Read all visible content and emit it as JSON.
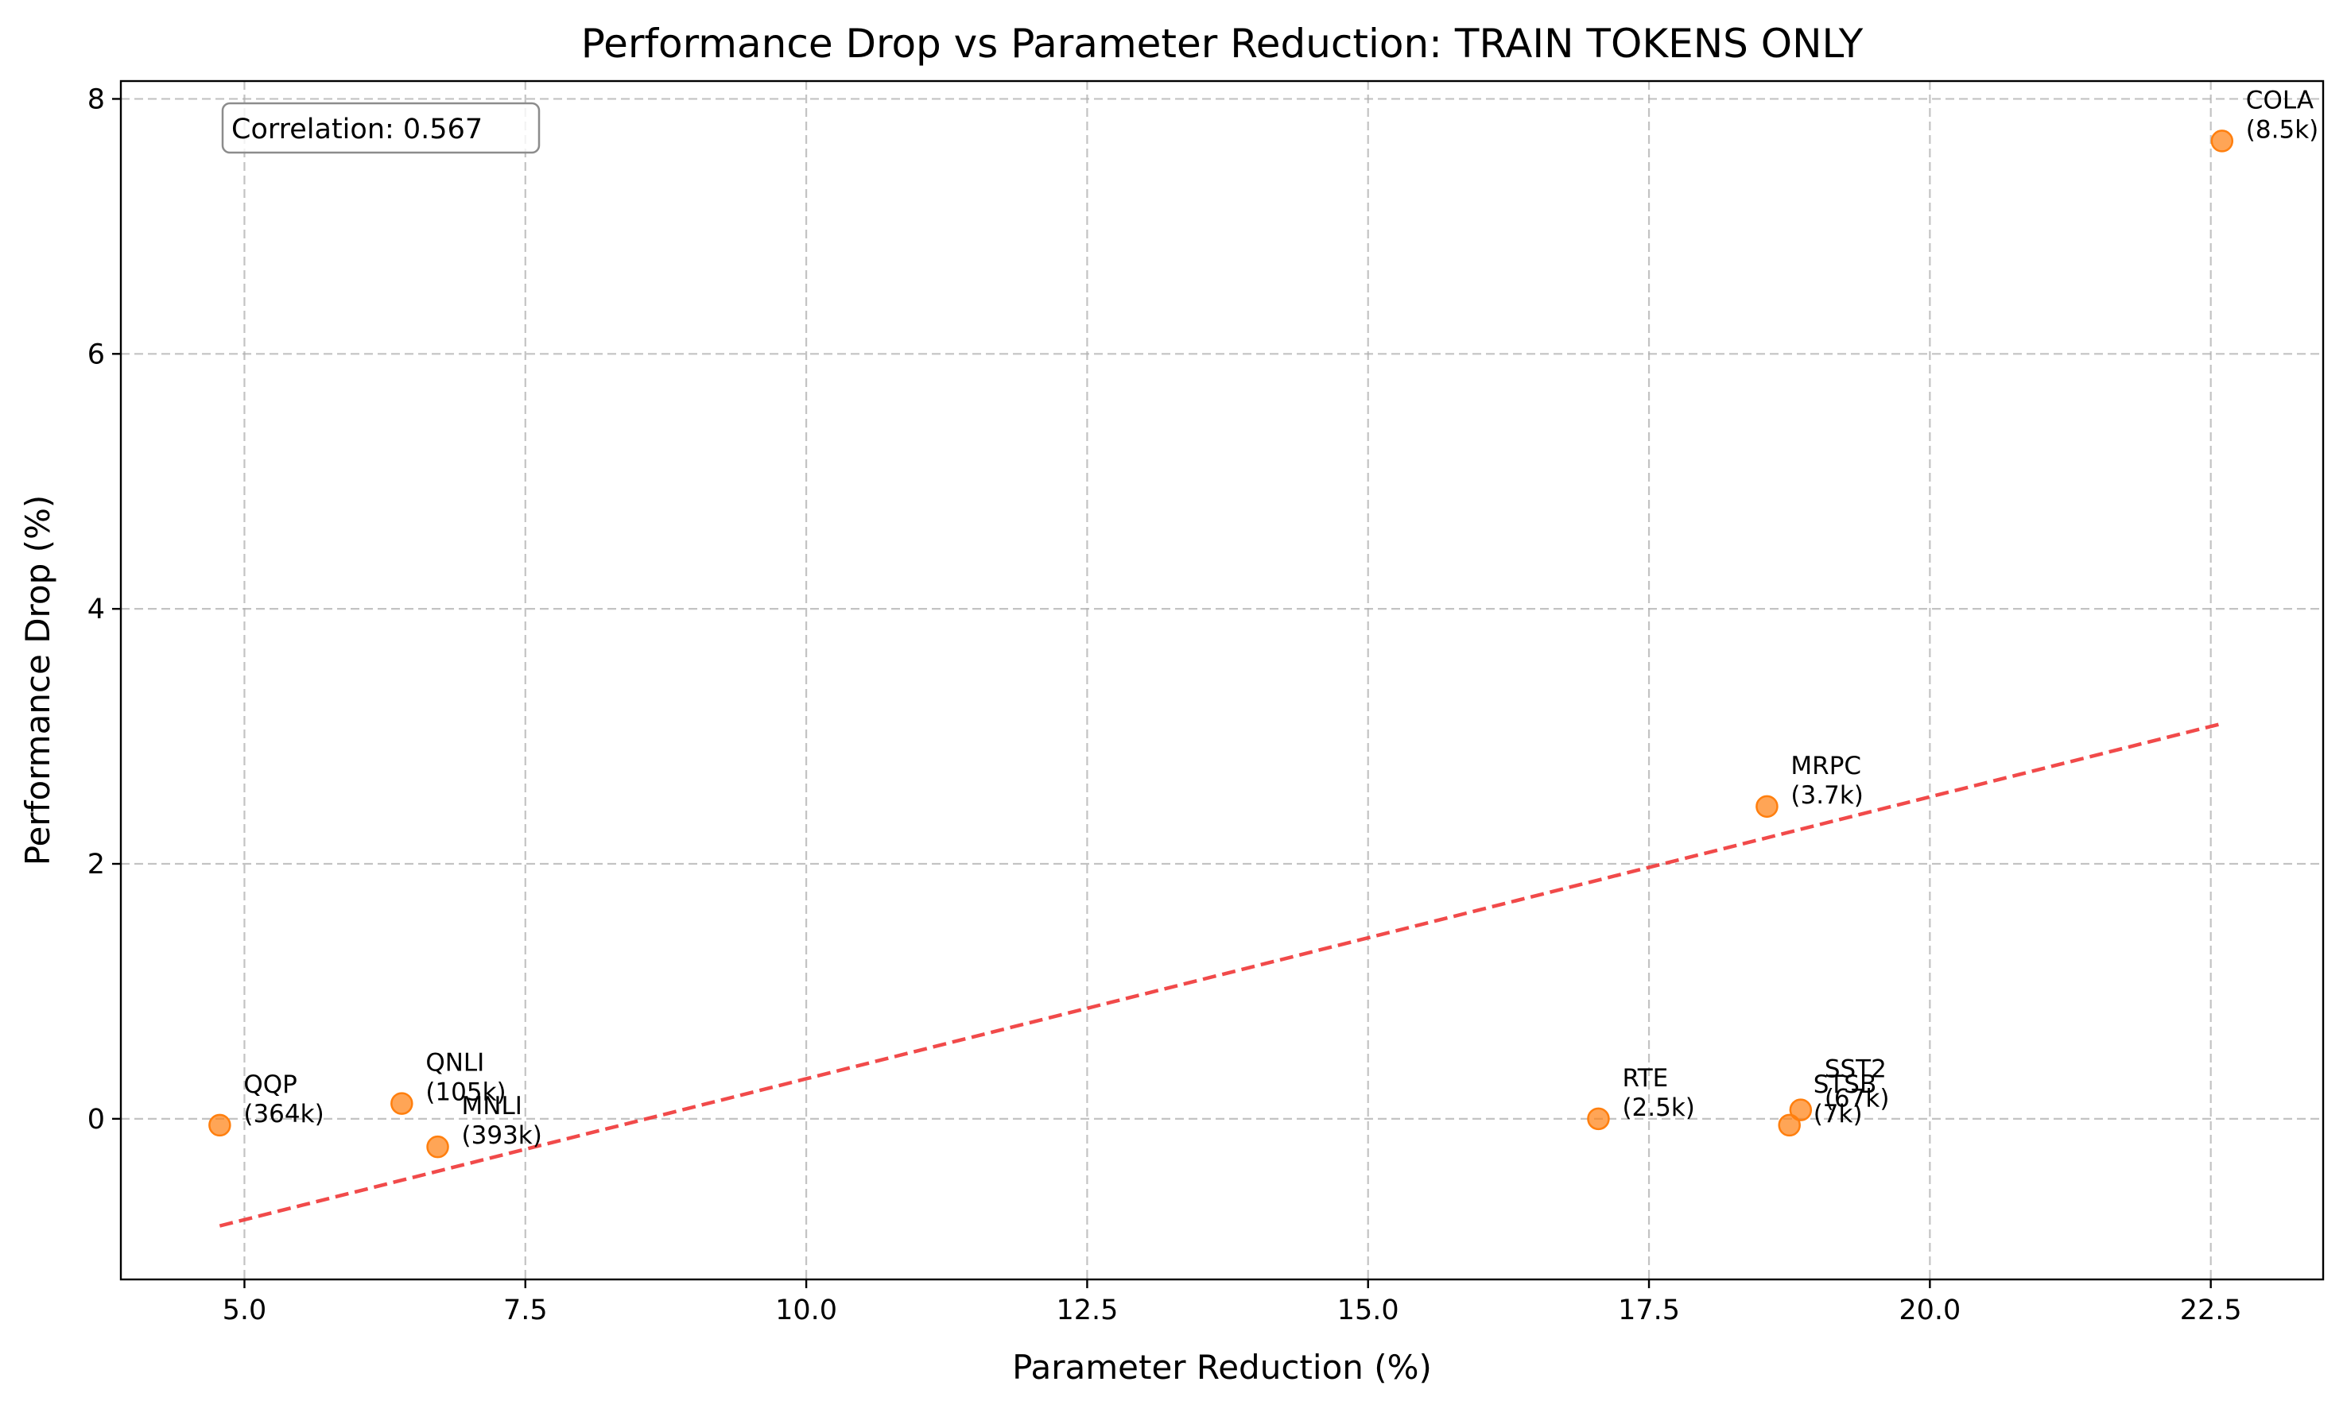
{
  "chart_data": {
    "type": "scatter",
    "title": "Performance Drop vs Parameter Reduction: TRAIN TOKENS ONLY",
    "xlabel": "Parameter Reduction (%)",
    "ylabel": "Performance Drop (%)",
    "xlim": [
      3.9,
      23.5
    ],
    "ylim": [
      -1.26,
      8.14
    ],
    "x_ticks": [
      5.0,
      7.5,
      10.0,
      12.5,
      15.0,
      17.5,
      20.0,
      22.5
    ],
    "x_tick_labels": [
      "5.0",
      "7.5",
      "10.0",
      "12.5",
      "15.0",
      "17.5",
      "20.0",
      "22.5"
    ],
    "y_ticks": [
      0,
      2,
      4,
      6,
      8
    ],
    "y_tick_labels": [
      "0",
      "2",
      "4",
      "6",
      "8"
    ],
    "grid": true,
    "point_color": "#ff7f0e",
    "trend_color": "#f03b3b",
    "points": [
      {
        "name": "QQP",
        "size": "(364k)",
        "x": 4.78,
        "y": -0.05
      },
      {
        "name": "QNLI",
        "size": "(105k)",
        "x": 6.4,
        "y": 0.12
      },
      {
        "name": "MNLI",
        "size": "(393k)",
        "x": 6.72,
        "y": -0.22
      },
      {
        "name": "RTE",
        "size": "(2.5k)",
        "x": 17.05,
        "y": 0.0
      },
      {
        "name": "MRPC",
        "size": "(3.7k)",
        "x": 18.55,
        "y": 2.45
      },
      {
        "name": "STSB",
        "size": "(7k)",
        "x": 18.75,
        "y": -0.05
      },
      {
        "name": "SST2",
        "size": "(67k)",
        "x": 18.85,
        "y": 0.07
      },
      {
        "name": "COLA",
        "size": "(8.5k)",
        "x": 22.6,
        "y": 7.67
      }
    ],
    "trendline": {
      "x": [
        4.78,
        22.6
      ],
      "y": [
        -0.84,
        3.1
      ]
    },
    "annotation": "Correlation: 0.567"
  }
}
